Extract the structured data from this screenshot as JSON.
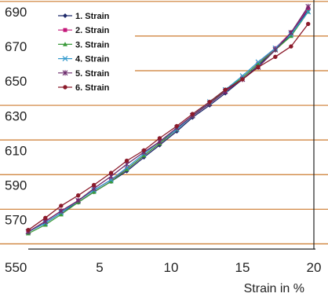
{
  "chart_data": {
    "type": "line",
    "xlabel": "Strain in %",
    "ylabel": "",
    "xlim": [
      0,
      20
    ],
    "ylim": [
      553,
      695
    ],
    "x_ticks": [
      5,
      10,
      15,
      20
    ],
    "y_ticks": [
      570,
      590,
      610,
      630,
      650,
      670,
      690
    ],
    "origin_label": "550",
    "gridlines_y": [
      556,
      576,
      596,
      616,
      636,
      656,
      676,
      696
    ],
    "grid_color": "#cc7a2e",
    "legend_position": "top-left",
    "series": [
      {
        "name": "1. Strain",
        "color": "#1f2a6b",
        "marker": "diamond",
        "x": [
          0,
          1.2,
          2.3,
          3.5,
          4.6,
          5.8,
          6.9,
          8.1,
          9.2,
          10.4,
          11.5,
          12.7,
          13.8,
          15.0,
          16.1,
          17.3,
          18.4,
          19.6
        ],
        "y": [
          563,
          568,
          574,
          580,
          586,
          592,
          598,
          606,
          613,
          621,
          629,
          636,
          643,
          651,
          659,
          668,
          677,
          691
        ]
      },
      {
        "name": "2. Strain",
        "color": "#c4197a",
        "marker": "square",
        "x": [
          0,
          1.2,
          2.3,
          3.5,
          4.6,
          5.8,
          6.9,
          8.1,
          9.2,
          10.4,
          11.5,
          12.7,
          13.8,
          15.0,
          16.1,
          17.3,
          18.4,
          19.6
        ],
        "y": [
          563,
          569,
          575,
          581,
          587,
          593,
          599,
          607,
          614,
          622,
          630,
          637,
          644,
          652,
          660,
          669,
          678,
          692
        ]
      },
      {
        "name": "3. Strain",
        "color": "#3a9a3a",
        "marker": "triangle",
        "x": [
          0,
          1.2,
          2.3,
          3.5,
          4.6,
          5.8,
          6.9,
          8.1,
          9.2,
          10.4,
          11.5,
          12.7,
          13.8,
          15.0,
          16.1,
          17.3,
          18.4,
          19.6
        ],
        "y": [
          562,
          567,
          573,
          580,
          586,
          592,
          599,
          607,
          614,
          622,
          630,
          637,
          645,
          652,
          660,
          668,
          676,
          690
        ]
      },
      {
        "name": "4. Strain",
        "color": "#3399cc",
        "marker": "x",
        "x": [
          0,
          1.2,
          2.3,
          3.5,
          4.6,
          5.8,
          6.9,
          8.1,
          9.2,
          10.4,
          11.5,
          12.7,
          13.8,
          15.0,
          16.1,
          17.3,
          18.4,
          19.6
        ],
        "y": [
          563,
          568,
          574,
          581,
          587,
          593,
          600,
          608,
          615,
          622,
          630,
          638,
          645,
          653,
          661,
          669,
          677,
          690
        ]
      },
      {
        "name": "5. Strain",
        "color": "#6b2a6b",
        "marker": "star",
        "x": [
          0,
          1.2,
          2.3,
          3.5,
          4.6,
          5.8,
          6.9,
          8.1,
          9.2,
          10.4,
          11.5,
          12.7,
          13.8,
          15.0,
          16.1,
          17.3,
          18.4,
          19.6
        ],
        "y": [
          563,
          569,
          575,
          581,
          588,
          595,
          602,
          609,
          615,
          623,
          630,
          637,
          644,
          651,
          658,
          668,
          678,
          693
        ]
      },
      {
        "name": "6. Strain",
        "color": "#8b1a2a",
        "marker": "circle",
        "x": [
          0,
          1.2,
          2.3,
          3.5,
          4.6,
          5.8,
          6.9,
          8.1,
          9.2,
          10.4,
          11.5,
          12.7,
          13.8,
          15.0,
          16.1,
          17.3,
          18.4,
          19.6
        ],
        "y": [
          564,
          571,
          578,
          584,
          590,
          597,
          604,
          610,
          617,
          624,
          631,
          638,
          645,
          651,
          658,
          664,
          670,
          683
        ]
      }
    ]
  }
}
